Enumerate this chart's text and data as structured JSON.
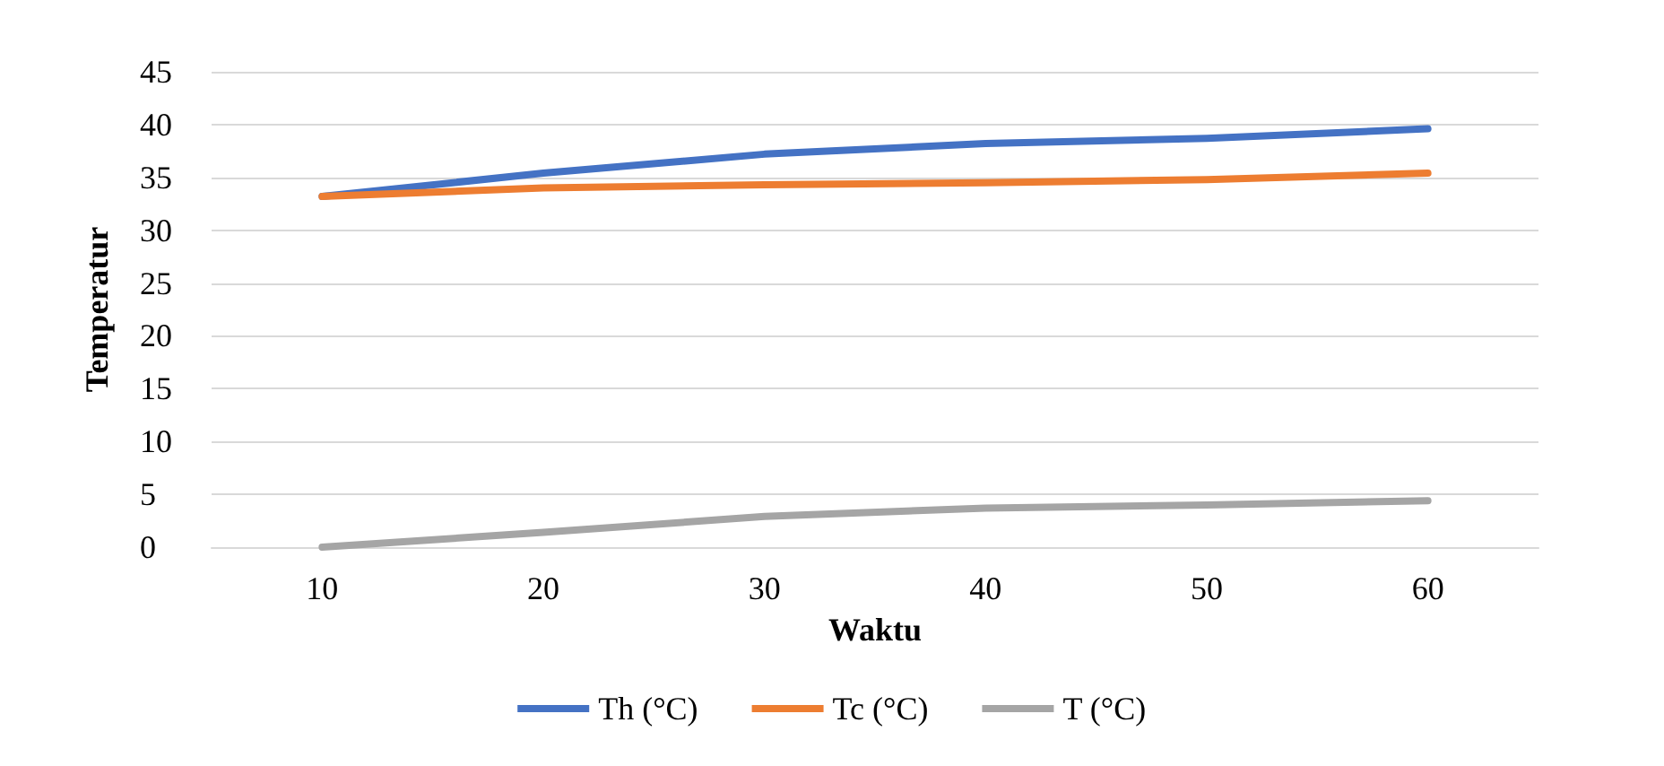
{
  "chart_data": {
    "type": "line",
    "xlabel": "Waktu",
    "ylabel": "Temperatur",
    "categories": [
      "10",
      "20",
      "30",
      "40",
      "50",
      "60"
    ],
    "series": [
      {
        "name": "Th (°C)",
        "color": "#4472c4",
        "values": [
          33.2,
          35.4,
          37.2,
          38.2,
          38.7,
          39.6
        ]
      },
      {
        "name": "Tc (°C)",
        "color": "#ed7d31",
        "values": [
          33.2,
          34.0,
          34.3,
          34.5,
          34.8,
          35.4
        ]
      },
      {
        "name": "T (°C)",
        "color": "#a5a5a5",
        "values": [
          0,
          1.4,
          2.9,
          3.7,
          4.0,
          4.4
        ]
      }
    ],
    "ylim": [
      0,
      45
    ],
    "yticks": [
      0,
      5,
      10,
      15,
      20,
      25,
      30,
      35,
      40,
      45
    ],
    "grid": "y",
    "legend": "bottom",
    "marker": "none",
    "line_style": "solid"
  }
}
